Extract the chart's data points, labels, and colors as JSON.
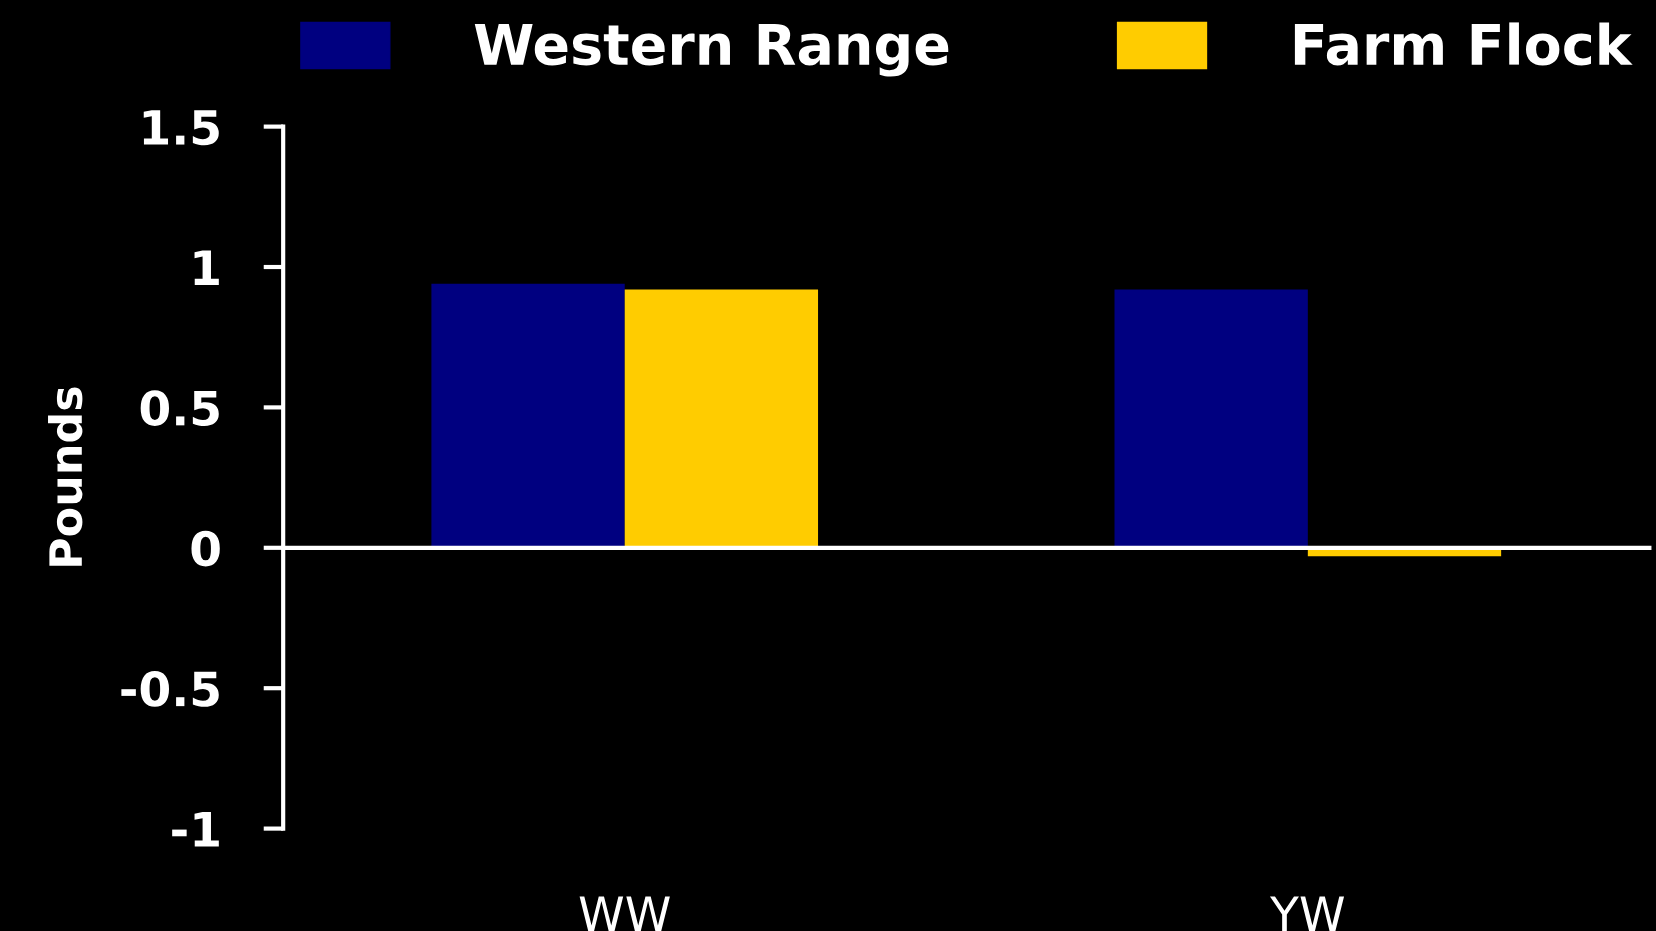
{
  "chart_data": {
    "type": "bar",
    "ylabel": "Pounds",
    "categories": [
      "WW",
      "YW"
    ],
    "series": [
      {
        "name": "Western Range",
        "color": "#000080",
        "values": [
          0.94,
          0.92
        ]
      },
      {
        "name": "Farm Flock",
        "color": "#ffcc00",
        "values": [
          0.92,
          -0.03
        ]
      }
    ],
    "ylim": [
      -1,
      1.5
    ],
    "yticks": [
      -1,
      -0.5,
      0,
      0.5,
      1,
      1.5
    ],
    "legend": "top"
  }
}
